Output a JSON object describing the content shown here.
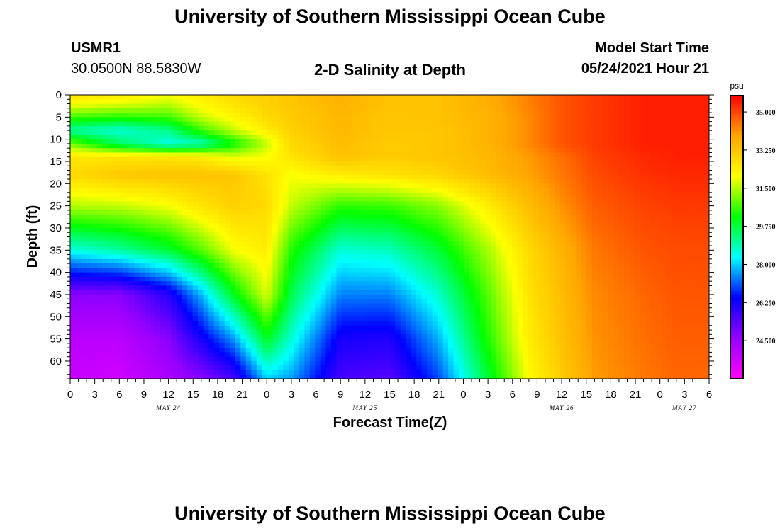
{
  "header": {
    "title_top": "University of Southern Mississippi Ocean Cube",
    "title_bottom": "University of Southern Mississippi Ocean Cube",
    "station_id": "USMR1",
    "station_coords": "30.0500N  88.5830W",
    "model_start_label": "Model Start Time",
    "model_start_value": "05/24/2021 Hour 21"
  },
  "colors": {
    "colormap": [
      "#ff00ff",
      "#9900ff",
      "#0000ff",
      "#00ffff",
      "#00ff00",
      "#ffff00",
      "#ffa500",
      "#ff0000"
    ]
  },
  "chart_data": {
    "type": "heatmap",
    "title": "2-D Salinity at Depth",
    "xlabel": "Forecast Time(Z)",
    "ylabel": "Depth (ft)",
    "units": "psu",
    "x_range_hours": [
      0,
      78
    ],
    "x_tick_values": [
      0,
      3,
      6,
      9,
      12,
      15,
      18,
      21,
      24,
      27,
      30,
      33,
      36,
      39,
      42,
      45,
      48,
      51,
      54,
      57,
      60,
      63,
      66,
      69,
      72,
      75,
      78
    ],
    "x_tick_labels": [
      "0",
      "3",
      "6",
      "9",
      "12",
      "15",
      "18",
      "21",
      "0",
      "3",
      "6",
      "9",
      "12",
      "15",
      "18",
      "21",
      "0",
      "3",
      "6",
      "9",
      "12",
      "15",
      "18",
      "21",
      "0",
      "3",
      "6"
    ],
    "date_labels": [
      {
        "hour": 12,
        "label": "MAY 24"
      },
      {
        "hour": 36,
        "label": "MAY 25"
      },
      {
        "hour": 60,
        "label": "MAY 26"
      },
      {
        "hour": 75,
        "label": "MAY 27"
      }
    ],
    "y_range_ft": [
      0,
      64
    ],
    "y_tick_values": [
      0,
      5,
      10,
      15,
      20,
      25,
      30,
      35,
      40,
      45,
      50,
      55,
      60
    ],
    "y_tick_labels": [
      "0",
      "5",
      "10",
      "15",
      "20",
      "25",
      "30",
      "35",
      "40",
      "45",
      "50",
      "55",
      "60"
    ],
    "colorbar": {
      "min": 22.75,
      "max": 35.75,
      "tick_values": [
        35.0,
        33.25,
        31.5,
        29.75,
        28.0,
        26.25,
        24.5
      ],
      "tick_labels": [
        "35.000",
        "33.250",
        "31.500",
        "29.750",
        "28.000",
        "26.250",
        "24.500"
      ]
    },
    "salinity_hours": [
      0,
      6,
      12,
      16,
      20,
      24,
      27,
      33,
      39,
      45,
      51,
      56,
      60,
      64,
      70,
      74,
      78
    ],
    "salinity_depths": [
      0,
      2,
      5,
      8,
      11,
      14,
      18,
      25,
      35,
      45,
      55,
      64
    ],
    "salinity_grid": [
      [
        32.6,
        32.4,
        32.0,
        32.4,
        32.8,
        33.0,
        33.2,
        33.6,
        33.3,
        33.3,
        33.7,
        34.3,
        34.8,
        35.1,
        35.4,
        35.4,
        35.4
      ],
      [
        32.1,
        31.9,
        31.6,
        32.2,
        32.6,
        33.0,
        33.2,
        33.6,
        33.3,
        33.3,
        33.7,
        34.3,
        34.8,
        35.1,
        35.4,
        35.4,
        35.4
      ],
      [
        30.6,
        30.4,
        30.6,
        31.6,
        32.2,
        32.8,
        33.1,
        33.5,
        33.2,
        33.3,
        33.6,
        34.2,
        34.8,
        35.1,
        35.4,
        35.4,
        35.4
      ],
      [
        29.0,
        28.6,
        29.2,
        30.6,
        31.6,
        32.4,
        33.0,
        33.5,
        33.2,
        33.2,
        33.6,
        34.2,
        34.8,
        35.1,
        35.4,
        35.4,
        35.4
      ],
      [
        31.0,
        29.5,
        28.5,
        28.8,
        30.2,
        31.6,
        32.8,
        33.4,
        33.1,
        33.2,
        33.6,
        34.2,
        34.8,
        35.1,
        35.4,
        35.4,
        35.4
      ],
      [
        32.5,
        32.5,
        32.5,
        32.4,
        31.8,
        32.0,
        32.6,
        33.3,
        33.1,
        33.2,
        33.5,
        34.0,
        34.5,
        35.0,
        35.3,
        35.4,
        35.4
      ],
      [
        32.8,
        33.2,
        33.3,
        33.3,
        33.2,
        32.6,
        32.0,
        32.4,
        32.6,
        32.9,
        33.4,
        33.9,
        34.4,
        34.9,
        35.2,
        35.3,
        35.3
      ],
      [
        31.5,
        31.6,
        32.0,
        32.6,
        33.0,
        32.8,
        31.6,
        30.5,
        30.6,
        31.2,
        32.4,
        33.4,
        34.1,
        34.7,
        35.0,
        35.1,
        35.1
      ],
      [
        28.5,
        29.0,
        29.8,
        30.8,
        32.0,
        32.4,
        30.4,
        28.6,
        28.8,
        29.8,
        31.4,
        32.8,
        33.6,
        34.4,
        34.8,
        34.9,
        34.9
      ],
      [
        24.8,
        24.8,
        26.0,
        27.8,
        30.0,
        31.8,
        29.6,
        27.4,
        27.4,
        28.7,
        30.8,
        32.6,
        33.4,
        34.2,
        34.6,
        34.8,
        34.8
      ],
      [
        24.0,
        24.0,
        24.8,
        26.2,
        27.6,
        30.0,
        28.6,
        26.2,
        26.1,
        27.8,
        30.4,
        32.4,
        33.3,
        34.1,
        34.5,
        34.7,
        34.7
      ],
      [
        23.8,
        23.6,
        24.3,
        24.8,
        25.6,
        28.0,
        27.6,
        25.6,
        25.4,
        27.0,
        29.8,
        32.1,
        33.1,
        34.0,
        34.4,
        34.6,
        34.6
      ]
    ]
  }
}
